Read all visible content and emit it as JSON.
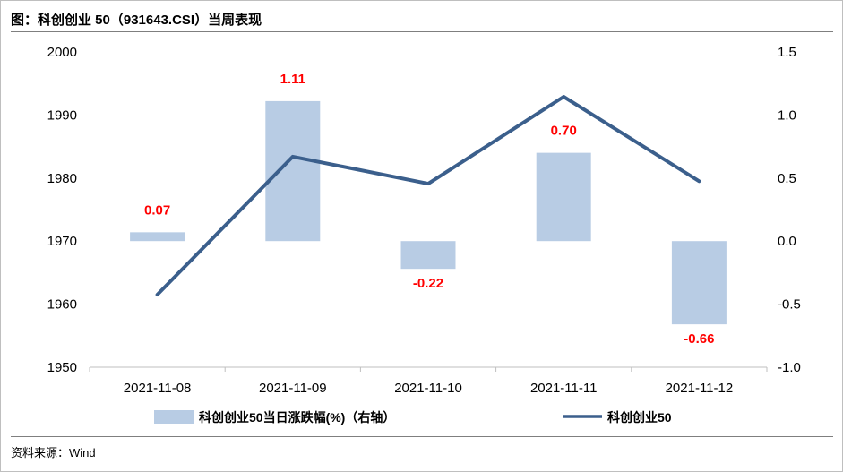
{
  "title": "图：科创创业 50（931643.CSI）当周表现",
  "source": "资料来源：Wind",
  "chart_data": {
    "type": "bar+line",
    "categories": [
      "2021-11-08",
      "2021-11-09",
      "2021-11-10",
      "2021-11-11",
      "2021-11-12"
    ],
    "series": [
      {
        "name": "科创创业50当日涨跌幅(%)（右轴）",
        "type": "bar",
        "axis": "right",
        "values": [
          0.07,
          1.11,
          -0.22,
          0.7,
          -0.66
        ],
        "labels": [
          "0.07",
          "1.11",
          "-0.22",
          "0.70",
          "-0.66"
        ],
        "color": "#b8cce4"
      },
      {
        "name": "科创创业50",
        "type": "line",
        "axis": "left",
        "values": [
          1961.5,
          1983.4,
          1979.1,
          1992.9,
          1979.5
        ],
        "color": "#3b5f8c"
      }
    ],
    "left_axis": {
      "range": [
        1950,
        2000
      ],
      "ticks": [
        "1950",
        "1960",
        "1970",
        "1980",
        "1990",
        "2000"
      ]
    },
    "right_axis": {
      "range": [
        -1.0,
        1.5
      ],
      "ticks": [
        "-1.0",
        "-0.5",
        "0.0",
        "0.5",
        "1.0",
        "1.5"
      ]
    },
    "label_color": "#ff0000",
    "legend_position": "bottom"
  }
}
